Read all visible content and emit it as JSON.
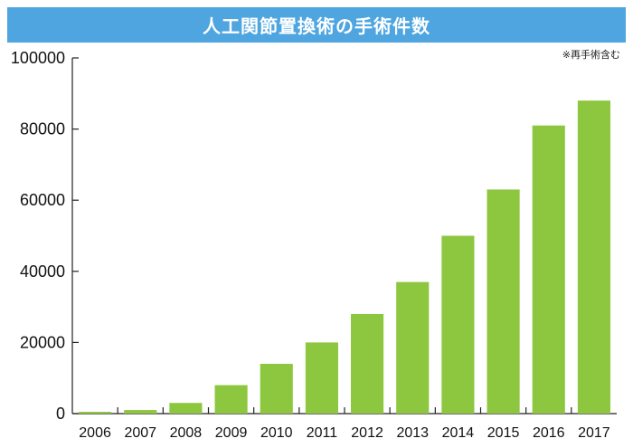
{
  "chart_data": {
    "type": "bar",
    "title": "人工関節置換術の手術件数",
    "note": "※再手術含む",
    "categories": [
      "2006",
      "2007",
      "2008",
      "2009",
      "2010",
      "2011",
      "2012",
      "2013",
      "2014",
      "2015",
      "2016",
      "2017"
    ],
    "values": [
      500,
      1000,
      3000,
      8000,
      14000,
      20000,
      28000,
      37000,
      50000,
      63000,
      81000,
      88000
    ],
    "ylim": [
      0,
      100000
    ],
    "yticks": [
      0,
      20000,
      40000,
      60000,
      80000,
      100000
    ],
    "xlabel": "",
    "ylabel": "",
    "grid": false,
    "bar_color": "#8dc63f",
    "title_bg_color": "#4ea5df"
  }
}
